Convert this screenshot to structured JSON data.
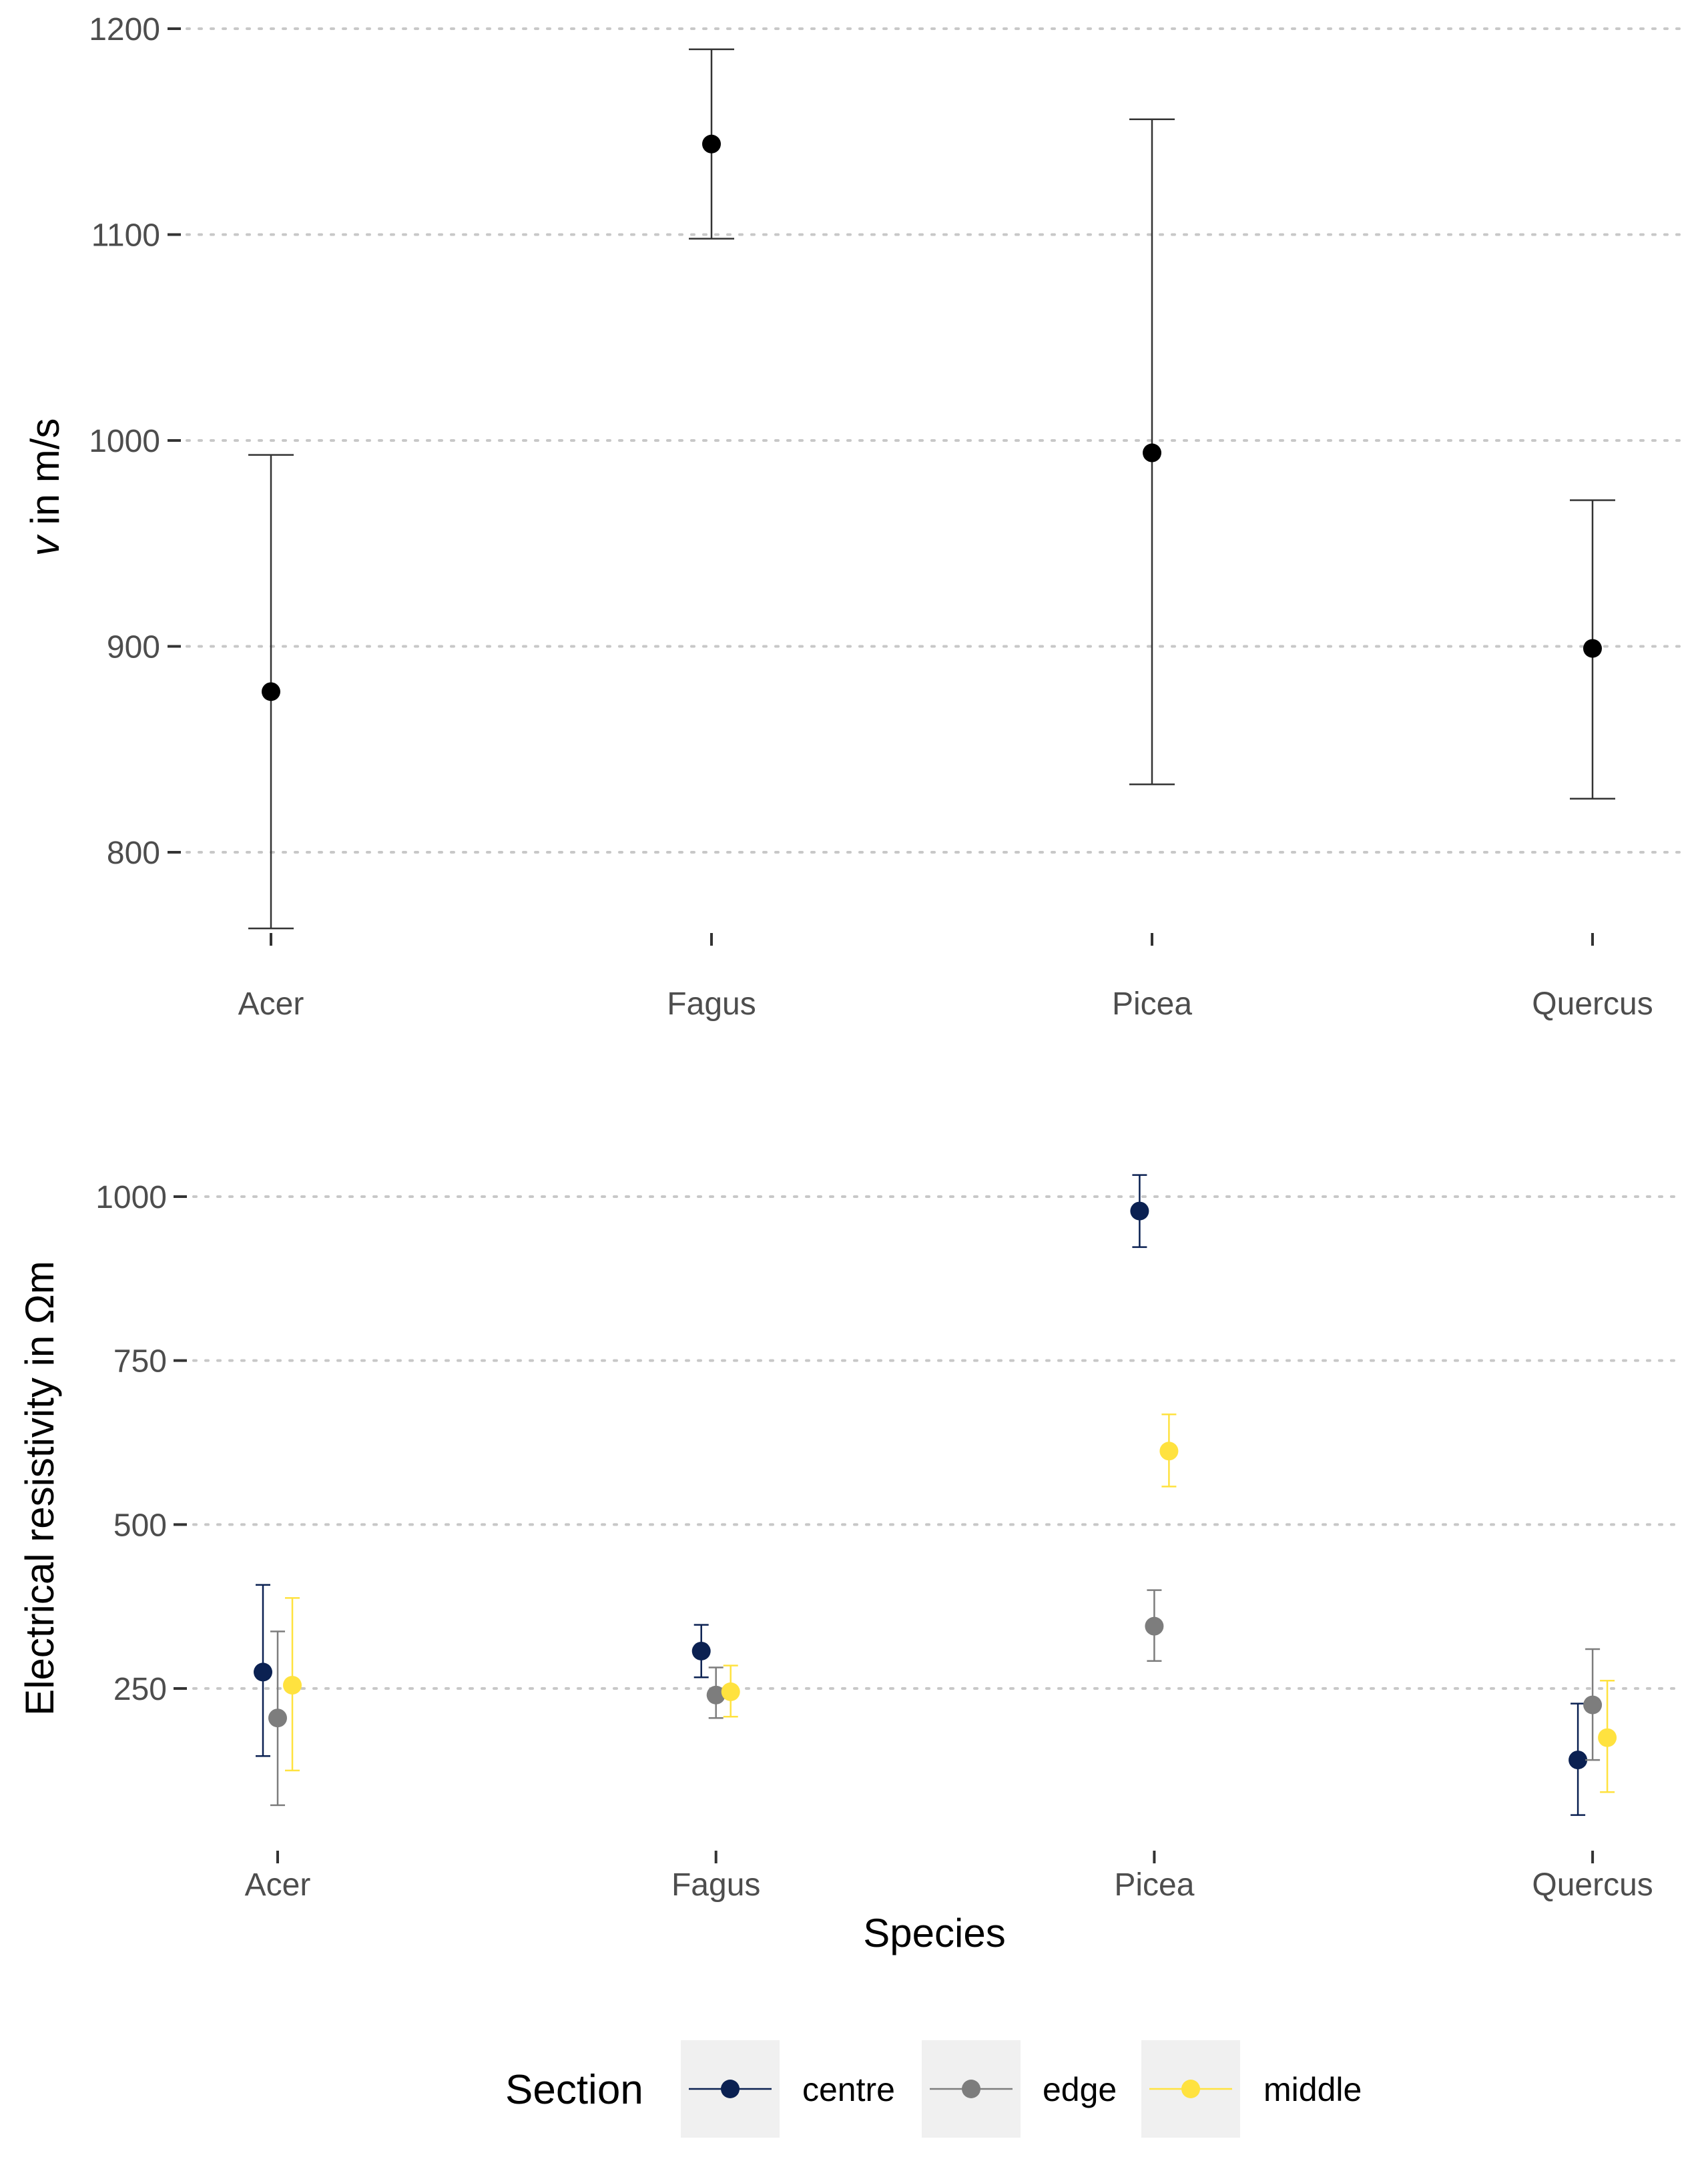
{
  "chart_data": [
    {
      "type": "scatter",
      "subtype": "point-errorbar",
      "title": "",
      "xlabel": "",
      "ylabel_italic": "v",
      "ylabel_rest": " in m/s",
      "categories": [
        "Acer",
        "Fagus",
        "Picea",
        "Quercus"
      ],
      "ylim": [
        745,
        1205
      ],
      "yticks": [
        800,
        900,
        1000,
        1100,
        1200
      ],
      "ytick_labels": [
        "800",
        "900",
        "1000",
        "1100",
        "1200"
      ],
      "grid": "horizontal-dotted",
      "series": [
        {
          "name": "v",
          "color": "#000000",
          "values": [
            878,
            1144,
            994,
            899
          ],
          "lower": [
            763,
            1098,
            833,
            826
          ],
          "upper": [
            993,
            1190,
            1156,
            971
          ]
        }
      ]
    },
    {
      "type": "scatter",
      "subtype": "point-errorbar-dodged",
      "title": "",
      "xlabel": "Species",
      "ylabel": "Electrical resistivity in  Ωm",
      "categories": [
        "Acer",
        "Fagus",
        "Picea",
        "Quercus"
      ],
      "ylim": [
        35,
        1095
      ],
      "yticks": [
        250,
        500,
        750,
        1000
      ],
      "ytick_labels": [
        "250",
        "500",
        "750",
        "1000"
      ],
      "grid": "horizontal-dotted",
      "legend": {
        "title": "Section",
        "position": "bottom",
        "items": [
          "centre",
          "edge",
          "middle"
        ]
      },
      "series": [
        {
          "name": "centre",
          "color": "#0b2152",
          "values": [
            275,
            307,
            978,
            141
          ],
          "lower": [
            147,
            267,
            923,
            57
          ],
          "upper": [
            408,
            347,
            1033,
            227
          ]
        },
        {
          "name": "edge",
          "color": "#7d7d7d",
          "values": [
            205,
            240,
            345,
            225
          ],
          "lower": [
            72,
            205,
            292,
            141
          ],
          "upper": [
            337,
            282,
            400,
            310
          ]
        },
        {
          "name": "middle",
          "color": "#ffe23f",
          "values": [
            255,
            245,
            612,
            175
          ],
          "lower": [
            125,
            207,
            558,
            92
          ],
          "upper": [
            388,
            285,
            668,
            262
          ]
        }
      ]
    }
  ]
}
